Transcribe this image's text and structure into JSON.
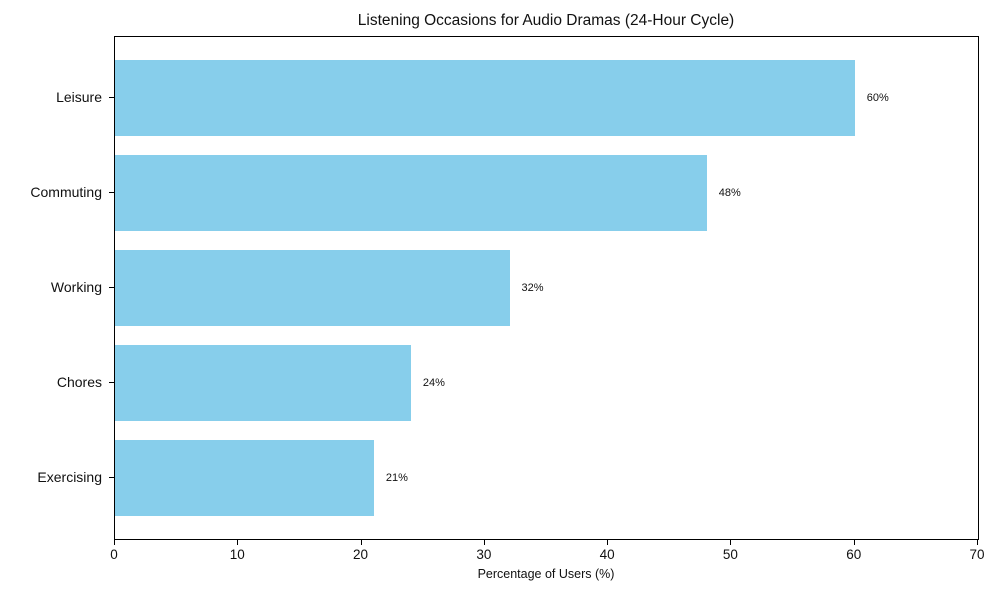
{
  "chart_data": {
    "type": "bar",
    "orientation": "horizontal",
    "title": "Listening Occasions for Audio Dramas (24-Hour Cycle)",
    "categories": [
      "Leisure",
      "Commuting",
      "Working",
      "Chores",
      "Exercising"
    ],
    "values": [
      60,
      48,
      32,
      24,
      21
    ],
    "value_labels": [
      "60%",
      "48%",
      "32%",
      "24%",
      "21%"
    ],
    "xlabel": "Percentage of Users (%)",
    "ylabel": "",
    "xlim": [
      0,
      70
    ],
    "x_ticks": [
      "0",
      "10",
      "20",
      "30",
      "40",
      "50",
      "60",
      "70"
    ],
    "x_tick_values": [
      0,
      10,
      20,
      30,
      40,
      50,
      60,
      70
    ],
    "bar_color": "#87CEEB",
    "axis_color": "#000000",
    "text_color": "#111111",
    "grid": false,
    "legend_position": "none"
  }
}
